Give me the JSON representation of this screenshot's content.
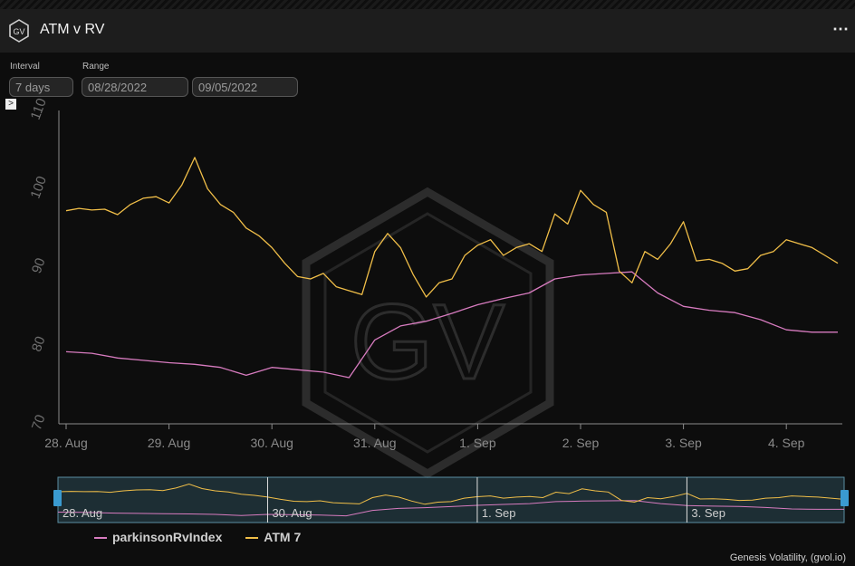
{
  "header": {
    "title": "ATM v RV",
    "menu_icon": "more-horizontal-icon",
    "logo_text": "GV"
  },
  "controls": {
    "interval_label": "Interval",
    "interval_value": "7 days",
    "range_label": "Range",
    "range_start": "08/28/2022",
    "range_end": "09/05/2022",
    "collapse_glyph": ">"
  },
  "watermark": "GV",
  "colors": {
    "atm": "#f0be48",
    "rv": "#d77bbf",
    "navigator_fill": "#2b4a55",
    "navigator_handle": "#3a9ad0"
  },
  "chart_data": {
    "type": "line",
    "xlabel": "",
    "ylabel": "",
    "x_range": [
      "2022-08-28 00:00",
      "2022-09-04 12:00"
    ],
    "ylim": [
      70,
      110
    ],
    "yticks": [
      70,
      80,
      90,
      100,
      110
    ],
    "xtick_labels": [
      "28. Aug",
      "29. Aug",
      "30. Aug",
      "31. Aug",
      "1. Sep",
      "2. Sep",
      "3. Sep",
      "4. Sep"
    ],
    "grid": false,
    "legend_position": "bottom-left",
    "series": [
      {
        "name": "parkinsonRvIndex",
        "color": "#d77bbf",
        "points": [
          [
            "2022-08-28 00:00",
            79.2
          ],
          [
            "2022-08-28 06:00",
            79.0
          ],
          [
            "2022-08-28 12:00",
            78.4
          ],
          [
            "2022-08-28 18:00",
            78.1
          ],
          [
            "2022-08-29 00:00",
            77.8
          ],
          [
            "2022-08-29 06:00",
            77.6
          ],
          [
            "2022-08-29 12:00",
            77.2
          ],
          [
            "2022-08-29 18:00",
            76.2
          ],
          [
            "2022-08-30 00:00",
            77.2
          ],
          [
            "2022-08-30 06:00",
            76.9
          ],
          [
            "2022-08-30 12:00",
            76.6
          ],
          [
            "2022-08-30 18:00",
            75.9
          ],
          [
            "2022-08-31 00:00",
            80.7
          ],
          [
            "2022-08-31 06:00",
            82.5
          ],
          [
            "2022-08-31 12:00",
            83.1
          ],
          [
            "2022-08-31 18:00",
            84.1
          ],
          [
            "2022-09-01 00:00",
            85.2
          ],
          [
            "2022-09-01 06:00",
            86.0
          ],
          [
            "2022-09-01 12:00",
            86.7
          ],
          [
            "2022-09-01 18:00",
            88.5
          ],
          [
            "2022-09-02 00:00",
            89.0
          ],
          [
            "2022-09-02 06:00",
            89.2
          ],
          [
            "2022-09-02 12:00",
            89.4
          ],
          [
            "2022-09-02 18:00",
            86.7
          ],
          [
            "2022-09-03 00:00",
            85.0
          ],
          [
            "2022-09-03 06:00",
            84.5
          ],
          [
            "2022-09-03 12:00",
            84.2
          ],
          [
            "2022-09-03 18:00",
            83.3
          ],
          [
            "2022-09-04 00:00",
            82.0
          ],
          [
            "2022-09-04 06:00",
            81.7
          ],
          [
            "2022-09-04 12:00",
            81.7
          ]
        ]
      },
      {
        "name": "ATM 7",
        "color": "#f0be48",
        "points": [
          [
            "2022-08-28 00:00",
            97.2
          ],
          [
            "2022-08-28 03:00",
            97.5
          ],
          [
            "2022-08-28 06:00",
            97.3
          ],
          [
            "2022-08-28 09:00",
            97.4
          ],
          [
            "2022-08-28 12:00",
            96.7
          ],
          [
            "2022-08-28 15:00",
            98.0
          ],
          [
            "2022-08-28 18:00",
            98.8
          ],
          [
            "2022-08-28 21:00",
            99.0
          ],
          [
            "2022-08-29 00:00",
            98.2
          ],
          [
            "2022-08-29 03:00",
            100.5
          ],
          [
            "2022-08-29 06:00",
            104.0
          ],
          [
            "2022-08-29 09:00",
            100.0
          ],
          [
            "2022-08-29 12:00",
            98.0
          ],
          [
            "2022-08-29 15:00",
            97.0
          ],
          [
            "2022-08-29 18:00",
            95.0
          ],
          [
            "2022-08-29 21:00",
            94.0
          ],
          [
            "2022-08-30 00:00",
            92.5
          ],
          [
            "2022-08-30 03:00",
            90.5
          ],
          [
            "2022-08-30 06:00",
            88.8
          ],
          [
            "2022-08-30 09:00",
            88.5
          ],
          [
            "2022-08-30 12:00",
            89.2
          ],
          [
            "2022-08-30 15:00",
            87.5
          ],
          [
            "2022-08-30 18:00",
            87.0
          ],
          [
            "2022-08-30 21:00",
            86.5
          ],
          [
            "2022-08-31 00:00",
            92.0
          ],
          [
            "2022-08-31 03:00",
            94.3
          ],
          [
            "2022-08-31 06:00",
            92.5
          ],
          [
            "2022-08-31 09:00",
            89.0
          ],
          [
            "2022-08-31 12:00",
            86.2
          ],
          [
            "2022-08-31 15:00",
            88.0
          ],
          [
            "2022-08-31 18:00",
            88.5
          ],
          [
            "2022-08-31 21:00",
            91.5
          ],
          [
            "2022-09-01 00:00",
            92.8
          ],
          [
            "2022-09-01 03:00",
            93.5
          ],
          [
            "2022-09-01 06:00",
            91.5
          ],
          [
            "2022-09-01 09:00",
            92.5
          ],
          [
            "2022-09-01 12:00",
            93.0
          ],
          [
            "2022-09-01 15:00",
            92.0
          ],
          [
            "2022-09-01 18:00",
            96.8
          ],
          [
            "2022-09-01 21:00",
            95.5
          ],
          [
            "2022-09-02 00:00",
            99.8
          ],
          [
            "2022-09-02 03:00",
            98.0
          ],
          [
            "2022-09-02 06:00",
            97.0
          ],
          [
            "2022-09-02 09:00",
            89.5
          ],
          [
            "2022-09-02 12:00",
            88.0
          ],
          [
            "2022-09-02 15:00",
            92.0
          ],
          [
            "2022-09-02 18:00",
            91.0
          ],
          [
            "2022-09-02 21:00",
            93.0
          ],
          [
            "2022-09-03 00:00",
            95.8
          ],
          [
            "2022-09-03 03:00",
            90.8
          ],
          [
            "2022-09-03 06:00",
            91.0
          ],
          [
            "2022-09-03 09:00",
            90.5
          ],
          [
            "2022-09-03 12:00",
            89.5
          ],
          [
            "2022-09-03 15:00",
            89.8
          ],
          [
            "2022-09-03 18:00",
            91.5
          ],
          [
            "2022-09-03 21:00",
            92.0
          ],
          [
            "2022-09-04 00:00",
            93.5
          ],
          [
            "2022-09-04 03:00",
            93.0
          ],
          [
            "2022-09-04 06:00",
            92.5
          ],
          [
            "2022-09-04 09:00",
            91.5
          ],
          [
            "2022-09-04 12:00",
            90.5
          ]
        ]
      }
    ]
  },
  "navigator": {
    "ticks": [
      "28. Aug",
      "30. Aug",
      "1. Sep",
      "3. Sep"
    ]
  },
  "legend": {
    "items": [
      "parkinsonRvIndex",
      "ATM 7"
    ]
  },
  "credit": "Genesis Volatility, (gvol.io)"
}
